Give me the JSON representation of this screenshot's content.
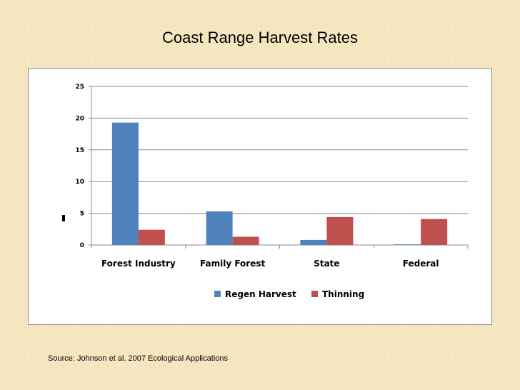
{
  "slide": {
    "title": "Coast Range Harvest Rates",
    "source": "Source: Johnson et al. 2007 Ecological Applications"
  },
  "chart_data": {
    "type": "bar",
    "categories": [
      "Forest Industry",
      "Family Forest",
      "State",
      "Federal"
    ],
    "series": [
      {
        "name": "Regen Harvest",
        "color": "#4f81bd",
        "values": [
          19.3,
          5.3,
          0.8,
          0.1
        ]
      },
      {
        "name": "Thinning",
        "color": "#c0504d",
        "values": [
          2.4,
          1.3,
          4.4,
          4.1
        ]
      }
    ],
    "ylim": [
      0,
      25
    ],
    "yticks": [
      0,
      5,
      10,
      15,
      20,
      25
    ],
    "grid": true,
    "legend": "bottom-center",
    "title": "",
    "xlabel": "",
    "ylabel": ""
  }
}
